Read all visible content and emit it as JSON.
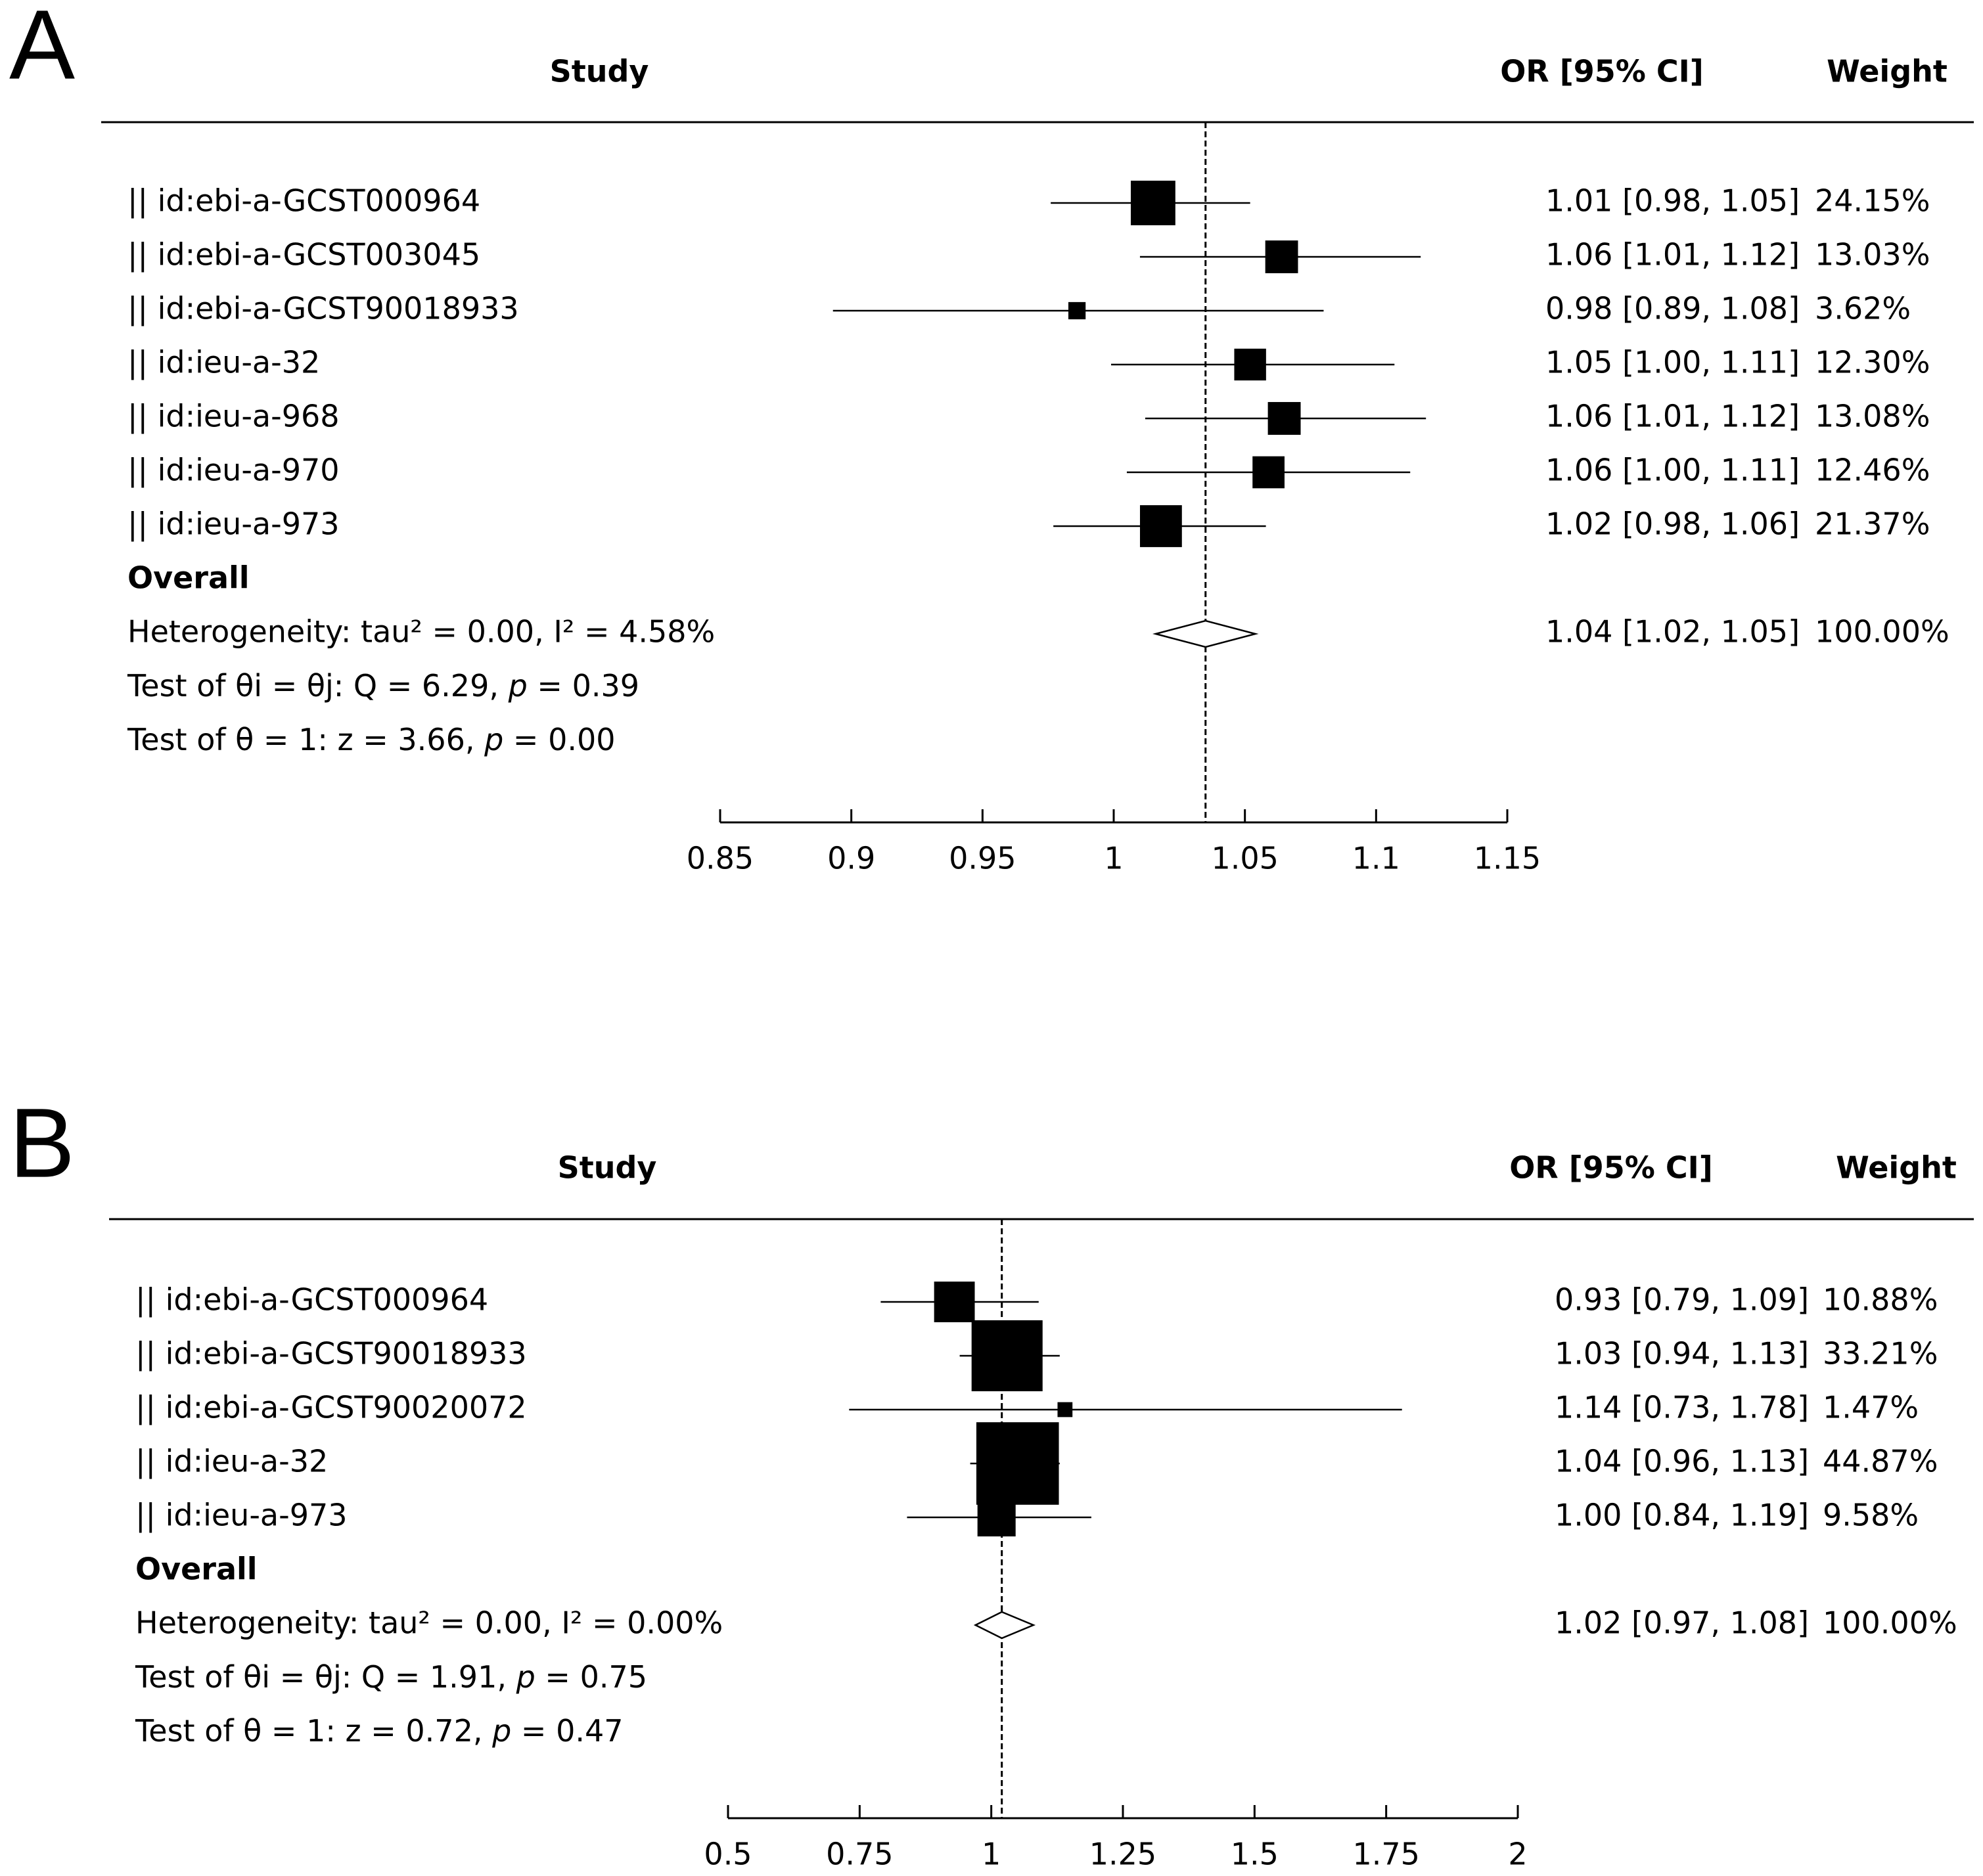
{
  "chart_data": [
    {
      "panel": "A",
      "type": "forest",
      "header": {
        "study": "Study",
        "effect": "OR [95% CI]",
        "weight": "Weight"
      },
      "studies": [
        {
          "label": "|| id:ebi-a-GCST000964",
          "or": 1.01,
          "lo": 0.98,
          "hi": 1.05,
          "marker": 1.015,
          "lo_bar": 0.976,
          "hi_bar": 1.052,
          "ci_text": "1.01 [0.98, 1.05]",
          "weight": 24.15,
          "weight_text": "24.15%"
        },
        {
          "label": "|| id:ebi-a-GCST003045",
          "or": 1.06,
          "lo": 1.01,
          "hi": 1.12,
          "marker": 1.064,
          "lo_bar": 1.01,
          "hi_bar": 1.117,
          "ci_text": "1.06 [1.01, 1.12]",
          "weight": 13.03,
          "weight_text": "13.03%"
        },
        {
          "label": "|| id:ebi-a-GCST90018933",
          "or": 0.98,
          "lo": 0.89,
          "hi": 1.08,
          "marker": 0.986,
          "lo_bar": 0.893,
          "hi_bar": 1.08,
          "ci_text": "0.98 [0.89, 1.08]",
          "weight": 3.62,
          "weight_text": "3.62%"
        },
        {
          "label": "|| id:ieu-a-32",
          "or": 1.05,
          "lo": 1.0,
          "hi": 1.11,
          "marker": 1.052,
          "lo_bar": 0.999,
          "hi_bar": 1.107,
          "ci_text": "1.05 [1.00, 1.11]",
          "weight": 12.3,
          "weight_text": "12.30%"
        },
        {
          "label": "|| id:ieu-a-968",
          "or": 1.06,
          "lo": 1.01,
          "hi": 1.12,
          "marker": 1.065,
          "lo_bar": 1.012,
          "hi_bar": 1.119,
          "ci_text": "1.06 [1.01, 1.12]",
          "weight": 13.08,
          "weight_text": "13.08%"
        },
        {
          "label": "|| id:ieu-a-970",
          "or": 1.06,
          "lo": 1.0,
          "hi": 1.11,
          "marker": 1.059,
          "lo_bar": 1.005,
          "hi_bar": 1.113,
          "ci_text": "1.06 [1.00, 1.11]",
          "weight": 12.46,
          "weight_text": "12.46%"
        },
        {
          "label": "|| id:ieu-a-973",
          "or": 1.02,
          "lo": 0.98,
          "hi": 1.06,
          "marker": 1.018,
          "lo_bar": 0.977,
          "hi_bar": 1.058,
          "ci_text": "1.02 [0.98, 1.06]",
          "weight": 21.37,
          "weight_text": "21.37%"
        }
      ],
      "overall": {
        "label": "Overall",
        "or": 1.04,
        "lo": 1.02,
        "hi": 1.05,
        "diamond_center": 1.035,
        "diamond_lo": 1.016,
        "diamond_hi": 1.054,
        "ci_text": "1.04 [1.02, 1.05]",
        "weight_text": "100.00%"
      },
      "stats": {
        "heterogeneity": "Heterogeneity: tau² = 0.00, I² = 4.58%",
        "q_prefix": "Test of θi = θj: Q = 6.29, ",
        "q_p": "p",
        "q_suffix": " = 0.39",
        "z_prefix": "Test of θ = 1: z = 3.66, ",
        "z_p": "p",
        "z_suffix": " = 0.00"
      },
      "reference_line": 1.035,
      "xlim": [
        0.85,
        1.15
      ],
      "ticks": [
        0.85,
        0.9,
        0.95,
        1,
        1.05,
        1.1,
        1.15
      ],
      "tick_labels": [
        "0.85",
        "0.9",
        "0.95",
        "1",
        "1.05",
        "1.1",
        "1.15"
      ]
    },
    {
      "panel": "B",
      "type": "forest",
      "header": {
        "study": "Study",
        "effect": "OR [95% CI]",
        "weight": "Weight"
      },
      "studies": [
        {
          "label": "|| id:ebi-a-GCST000964",
          "or": 0.93,
          "lo": 0.79,
          "hi": 1.09,
          "marker": 0.93,
          "lo_bar": 0.79,
          "hi_bar": 1.09,
          "ci_text": "0.93 [0.79, 1.09]",
          "weight": 10.88,
          "weight_text": "10.88%"
        },
        {
          "label": "|| id:ebi-a-GCST90018933",
          "or": 1.03,
          "lo": 0.94,
          "hi": 1.13,
          "marker": 1.03,
          "lo_bar": 0.94,
          "hi_bar": 1.13,
          "ci_text": "1.03 [0.94, 1.13]",
          "weight": 33.21,
          "weight_text": "33.21%"
        },
        {
          "label": "|| id:ebi-a-GCST90020072",
          "or": 1.14,
          "lo": 0.73,
          "hi": 1.78,
          "marker": 1.14,
          "lo_bar": 0.73,
          "hi_bar": 1.78,
          "ci_text": "1.14 [0.73, 1.78]",
          "weight": 1.47,
          "weight_text": "1.47%"
        },
        {
          "label": "|| id:ieu-a-32",
          "or": 1.04,
          "lo": 0.96,
          "hi": 1.13,
          "marker": 1.05,
          "lo_bar": 0.96,
          "hi_bar": 1.13,
          "ci_text": "1.04 [0.96, 1.13]",
          "weight": 44.87,
          "weight_text": "44.87%"
        },
        {
          "label": "|| id:ieu-a-973",
          "or": 1.0,
          "lo": 0.84,
          "hi": 1.19,
          "marker": 1.01,
          "lo_bar": 0.84,
          "hi_bar": 1.19,
          "ci_text": "1.00 [0.84, 1.19]",
          "weight": 9.58,
          "weight_text": "9.58%"
        }
      ],
      "overall": {
        "label": "Overall",
        "or": 1.02,
        "lo": 0.97,
        "hi": 1.08,
        "diamond_center": 1.02,
        "diamond_lo": 0.97,
        "diamond_hi": 1.08,
        "ci_text": "1.02 [0.97, 1.08]",
        "weight_text": "100.00%"
      },
      "stats": {
        "heterogeneity": "Heterogeneity: tau² = 0.00, I² = 0.00%",
        "q_prefix": "Test of θi = θj: Q = 1.91, ",
        "q_p": "p",
        "q_suffix": " = 0.75",
        "z_prefix": "Test of θ = 1: z = 0.72, ",
        "z_p": "p",
        "z_suffix": " = 0.47"
      },
      "reference_line": 1.02,
      "xlim": [
        0.5,
        2
      ],
      "ticks": [
        0.5,
        0.75,
        1,
        1.25,
        1.5,
        1.75,
        2
      ],
      "tick_labels": [
        "0.5",
        "0.75",
        "1",
        "1.25",
        "1.5",
        "1.75",
        "2"
      ]
    }
  ]
}
